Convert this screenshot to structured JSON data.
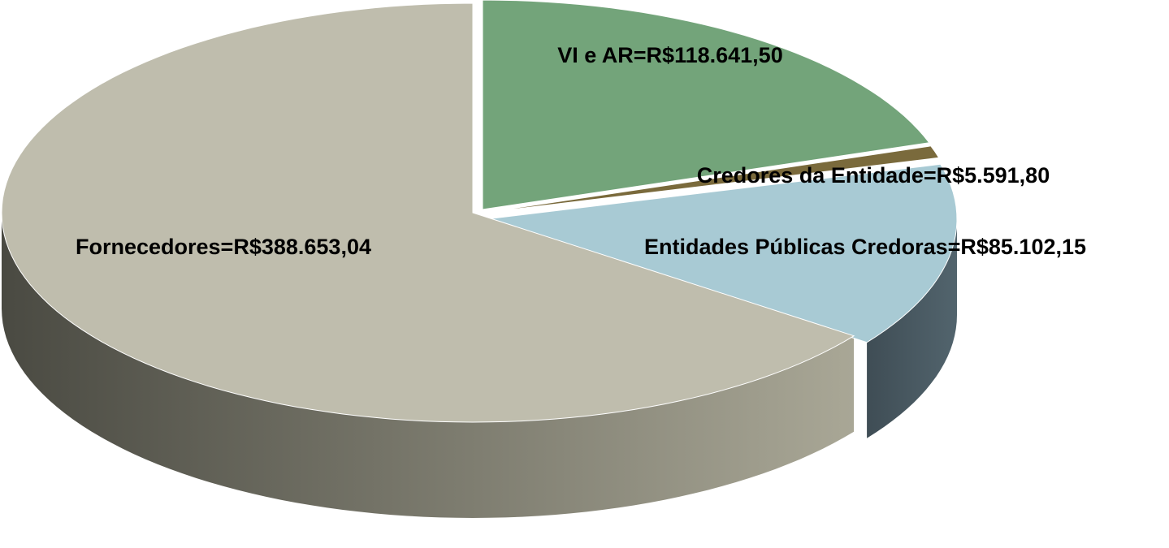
{
  "chart_data": {
    "type": "pie",
    "values": [
      118641.5,
      5591.8,
      85102.15,
      388653.04
    ],
    "value_labels": [
      "VI e AR=R$118.641,50",
      "Credores da Entidade=R$5.591,80",
      "Entidades Públicas Credoras=R$85.102,15",
      "Fornecedores=R$388.653,04"
    ],
    "colors": [
      "#73a47a",
      "#7a6a3c",
      "#a8cad4",
      "#bfbdad"
    ],
    "side_colors": [
      [
        "#4f7a55",
        "#3d6044"
      ],
      [
        "#5a4d2a",
        "#4a3f22"
      ],
      [
        "#52646d",
        "#3f4d55"
      ],
      [
        "#a9a796",
        "#4a4a42"
      ]
    ]
  }
}
